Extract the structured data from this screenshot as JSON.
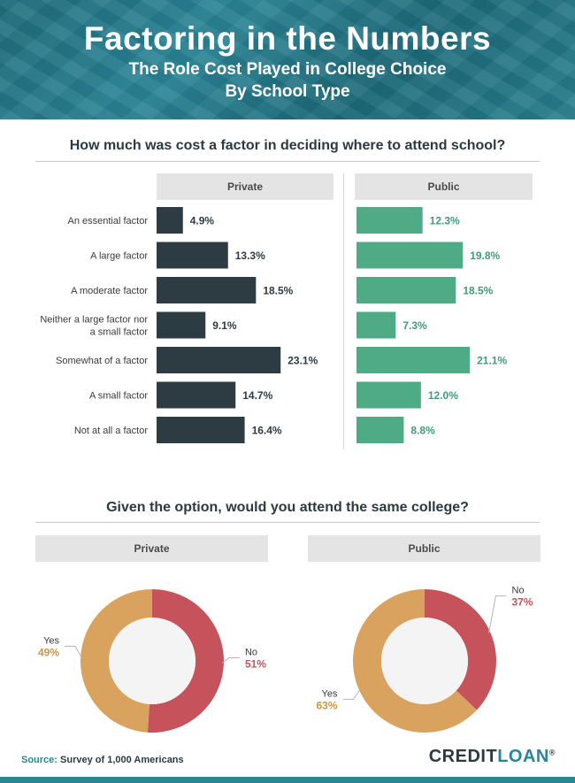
{
  "header": {
    "title": "Factoring in the Numbers",
    "subtitle_line1": "The Role Cost Played in College Choice",
    "subtitle_line2": "By School Type"
  },
  "colors": {
    "private_bar": "#2d3b43",
    "public_bar": "#4eab86",
    "public_label": "#3f9c78",
    "no_slice": "#c6525c",
    "yes_slice": "#d9a25e"
  },
  "chart_data": [
    {
      "type": "bar",
      "orientation": "horizontal",
      "title": "How much was cost a factor in deciding where to attend school?",
      "categories": [
        "An essential factor",
        "A large factor",
        "A moderate factor",
        "Neither a large factor nor a small factor",
        "Somewhat of a factor",
        "A small factor",
        "Not at all a factor"
      ],
      "category_lines": [
        [
          "An essential factor"
        ],
        [
          "A large factor"
        ],
        [
          "A moderate factor"
        ],
        [
          "Neither a large factor nor",
          "a small factor"
        ],
        [
          "Somewhat of a factor"
        ],
        [
          "A small factor"
        ],
        [
          "Not at all a factor"
        ]
      ],
      "series": [
        {
          "name": "Private",
          "values": [
            4.9,
            13.3,
            18.5,
            9.1,
            23.1,
            14.7,
            16.4
          ],
          "labels": [
            "4.9%",
            "13.3%",
            "18.5%",
            "9.1%",
            "23.1%",
            "14.7%",
            "16.4%"
          ]
        },
        {
          "name": "Public",
          "values": [
            12.3,
            19.8,
            18.5,
            7.3,
            21.1,
            12.0,
            8.8
          ],
          "labels": [
            "12.3%",
            "19.8%",
            "18.5%",
            "7.3%",
            "21.1%",
            "12.0%",
            "8.8%"
          ]
        }
      ],
      "xlim": [
        0,
        28
      ]
    },
    {
      "type": "pie",
      "style": "donut",
      "title": "Given the option, would you attend the same college?",
      "charts": [
        {
          "name": "Private",
          "slices": [
            {
              "label": "No",
              "value": 51,
              "text": "51%"
            },
            {
              "label": "Yes",
              "value": 49,
              "text": "49%"
            }
          ]
        },
        {
          "name": "Public",
          "slices": [
            {
              "label": "No",
              "value": 37,
              "text": "37%"
            },
            {
              "label": "Yes",
              "value": 63,
              "text": "63%"
            }
          ]
        }
      ]
    }
  ],
  "footer": {
    "source_label": "Source:",
    "source_text": "Survey of 1,000 Americans",
    "logo_part1": "CREDIT",
    "logo_part2": "LOAN",
    "logo_mark": "®"
  }
}
